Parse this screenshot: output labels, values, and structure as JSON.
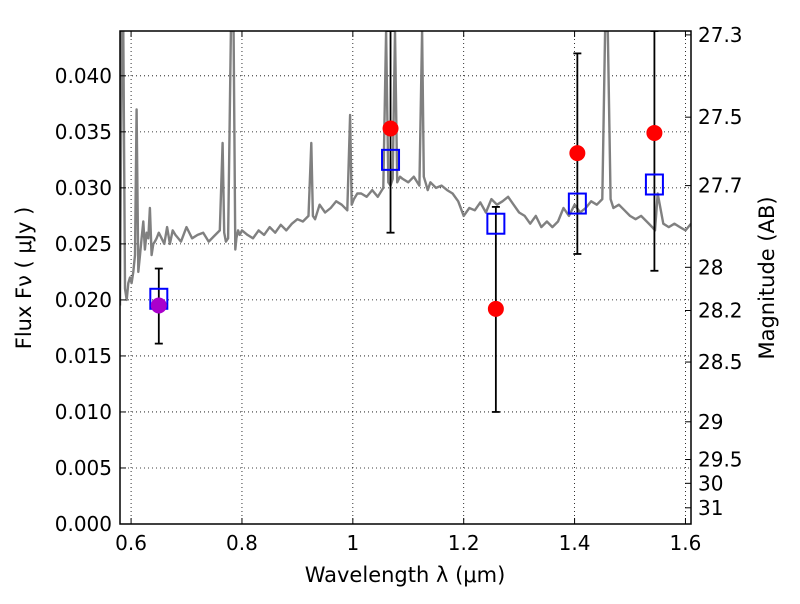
{
  "chart_data": {
    "type": "scatter",
    "xlabel": "Wavelength  λ (μm)",
    "ylabel_left": "Flux  Fν  ( μJy )",
    "ylabel_right": "Magnitude (AB)",
    "xlim": [
      0.58,
      1.61
    ],
    "ylim": [
      0.0,
      0.044
    ],
    "grid": true,
    "x_ticks": [
      {
        "value": 0.6,
        "label": "0.6"
      },
      {
        "value": 0.8,
        "label": "0.8"
      },
      {
        "value": 1.0,
        "label": "1"
      },
      {
        "value": 1.2,
        "label": "1.2"
      },
      {
        "value": 1.4,
        "label": "1.4"
      },
      {
        "value": 1.6,
        "label": "1.6"
      }
    ],
    "y_ticks": [
      {
        "value": 0.0,
        "label": "0.000"
      },
      {
        "value": 0.005,
        "label": "0.005"
      },
      {
        "value": 0.01,
        "label": "0.010"
      },
      {
        "value": 0.015,
        "label": "0.015"
      },
      {
        "value": 0.02,
        "label": "0.020"
      },
      {
        "value": 0.025,
        "label": "0.025"
      },
      {
        "value": 0.03,
        "label": "0.030"
      },
      {
        "value": 0.035,
        "label": "0.035"
      },
      {
        "value": 0.04,
        "label": "0.040"
      }
    ],
    "mag_ticks": [
      {
        "value": 27.3,
        "label": "27.3"
      },
      {
        "value": 27.5,
        "label": "27.5"
      },
      {
        "value": 27.7,
        "label": "27.7"
      },
      {
        "value": 28.0,
        "label": "28"
      },
      {
        "value": 28.2,
        "label": "28.2"
      },
      {
        "value": 28.5,
        "label": "28.5"
      },
      {
        "value": 29.0,
        "label": "29"
      },
      {
        "value": 29.5,
        "label": "29.5"
      },
      {
        "value": 30.0,
        "label": "30"
      },
      {
        "value": 31.0,
        "label": "31"
      }
    ],
    "observed": {
      "x": [
        0.65,
        1.068,
        1.258,
        1.405,
        1.544
      ],
      "y": [
        0.0195,
        0.0353,
        0.0192,
        0.0331,
        0.0349
      ],
      "colors": [
        "#aa00cc",
        "#ff0000",
        "#ff0000",
        "#ff0000",
        "#ff0000"
      ]
    },
    "error_bars": {
      "x": [
        0.65,
        1.068,
        1.258,
        1.405,
        1.544
      ],
      "low": [
        0.0161,
        0.026,
        0.01,
        0.0241,
        0.0226
      ],
      "high": [
        0.0228,
        0.044,
        0.0283,
        0.042,
        0.044
      ]
    },
    "model_points": {
      "x": [
        0.65,
        1.068,
        1.258,
        1.405,
        1.544
      ],
      "y": [
        0.0201,
        0.0325,
        0.0268,
        0.0286,
        0.0303
      ],
      "color": "#0000ff"
    },
    "spectrum": {
      "color": "#808080",
      "x": [
        0.58,
        0.583,
        0.586,
        0.589,
        0.592,
        0.595,
        0.598,
        0.601,
        0.604,
        0.607,
        0.61,
        0.613,
        0.616,
        0.619,
        0.622,
        0.625,
        0.628,
        0.631,
        0.634,
        0.637,
        0.64,
        0.643,
        0.646,
        0.65,
        0.655,
        0.66,
        0.665,
        0.67,
        0.675,
        0.68,
        0.69,
        0.7,
        0.71,
        0.72,
        0.73,
        0.74,
        0.75,
        0.76,
        0.765,
        0.768,
        0.771,
        0.775,
        0.78,
        0.785,
        0.788,
        0.79,
        0.793,
        0.796,
        0.8,
        0.81,
        0.82,
        0.83,
        0.84,
        0.85,
        0.86,
        0.87,
        0.88,
        0.89,
        0.9,
        0.91,
        0.92,
        0.925,
        0.928,
        0.932,
        0.94,
        0.95,
        0.96,
        0.97,
        0.98,
        0.99,
        0.995,
        0.998,
        1.002,
        1.008,
        1.015,
        1.025,
        1.035,
        1.045,
        1.055,
        1.06,
        1.064,
        1.068,
        1.072,
        1.076,
        1.08,
        1.085,
        1.09,
        1.1,
        1.11,
        1.12,
        1.125,
        1.128,
        1.131,
        1.135,
        1.14,
        1.15,
        1.16,
        1.17,
        1.18,
        1.19,
        1.2,
        1.21,
        1.22,
        1.23,
        1.24,
        1.25,
        1.26,
        1.27,
        1.28,
        1.29,
        1.3,
        1.31,
        1.32,
        1.33,
        1.34,
        1.35,
        1.36,
        1.37,
        1.38,
        1.39,
        1.4,
        1.41,
        1.42,
        1.43,
        1.44,
        1.45,
        1.455,
        1.46,
        1.465,
        1.47,
        1.48,
        1.49,
        1.5,
        1.51,
        1.52,
        1.53,
        1.54,
        1.545,
        1.55,
        1.56,
        1.57,
        1.58,
        1.59,
        1.6,
        1.61
      ],
      "y": [
        0.0195,
        0.044,
        0.044,
        0.021,
        0.02,
        0.0215,
        0.022,
        0.0215,
        0.0225,
        0.024,
        0.037,
        0.0225,
        0.024,
        0.0255,
        0.027,
        0.0245,
        0.026,
        0.0255,
        0.0282,
        0.024,
        0.025,
        0.0252,
        0.0255,
        0.026,
        0.0255,
        0.025,
        0.0265,
        0.025,
        0.0262,
        0.0258,
        0.0252,
        0.0265,
        0.0255,
        0.0258,
        0.026,
        0.0252,
        0.0257,
        0.0262,
        0.034,
        0.026,
        0.0252,
        0.0255,
        0.044,
        0.044,
        0.0245,
        0.0255,
        0.0262,
        0.0258,
        0.0262,
        0.0258,
        0.0255,
        0.0262,
        0.0258,
        0.0265,
        0.026,
        0.0267,
        0.0262,
        0.0268,
        0.0272,
        0.027,
        0.0275,
        0.034,
        0.0275,
        0.0272,
        0.0285,
        0.0278,
        0.0282,
        0.0288,
        0.0285,
        0.028,
        0.0365,
        0.0285,
        0.029,
        0.0295,
        0.0295,
        0.0292,
        0.0298,
        0.0292,
        0.03,
        0.044,
        0.0305,
        0.0302,
        0.0308,
        0.044,
        0.0305,
        0.031,
        0.0308,
        0.0305,
        0.031,
        0.0302,
        0.044,
        0.031,
        0.0305,
        0.0298,
        0.0305,
        0.03,
        0.0302,
        0.0298,
        0.0295,
        0.0288,
        0.0275,
        0.0282,
        0.028,
        0.0287,
        0.0278,
        0.029,
        0.0285,
        0.0288,
        0.0292,
        0.0285,
        0.0278,
        0.0275,
        0.0268,
        0.0275,
        0.0265,
        0.027,
        0.0265,
        0.027,
        0.0282,
        0.0275,
        0.0285,
        0.0278,
        0.0282,
        0.0288,
        0.0285,
        0.029,
        0.044,
        0.044,
        0.029,
        0.0282,
        0.0285,
        0.028,
        0.0275,
        0.0272,
        0.0275,
        0.027,
        0.0265,
        0.0262,
        0.0295,
        0.0268,
        0.0265,
        0.0268,
        0.0265,
        0.0262,
        0.0268
      ]
    }
  }
}
